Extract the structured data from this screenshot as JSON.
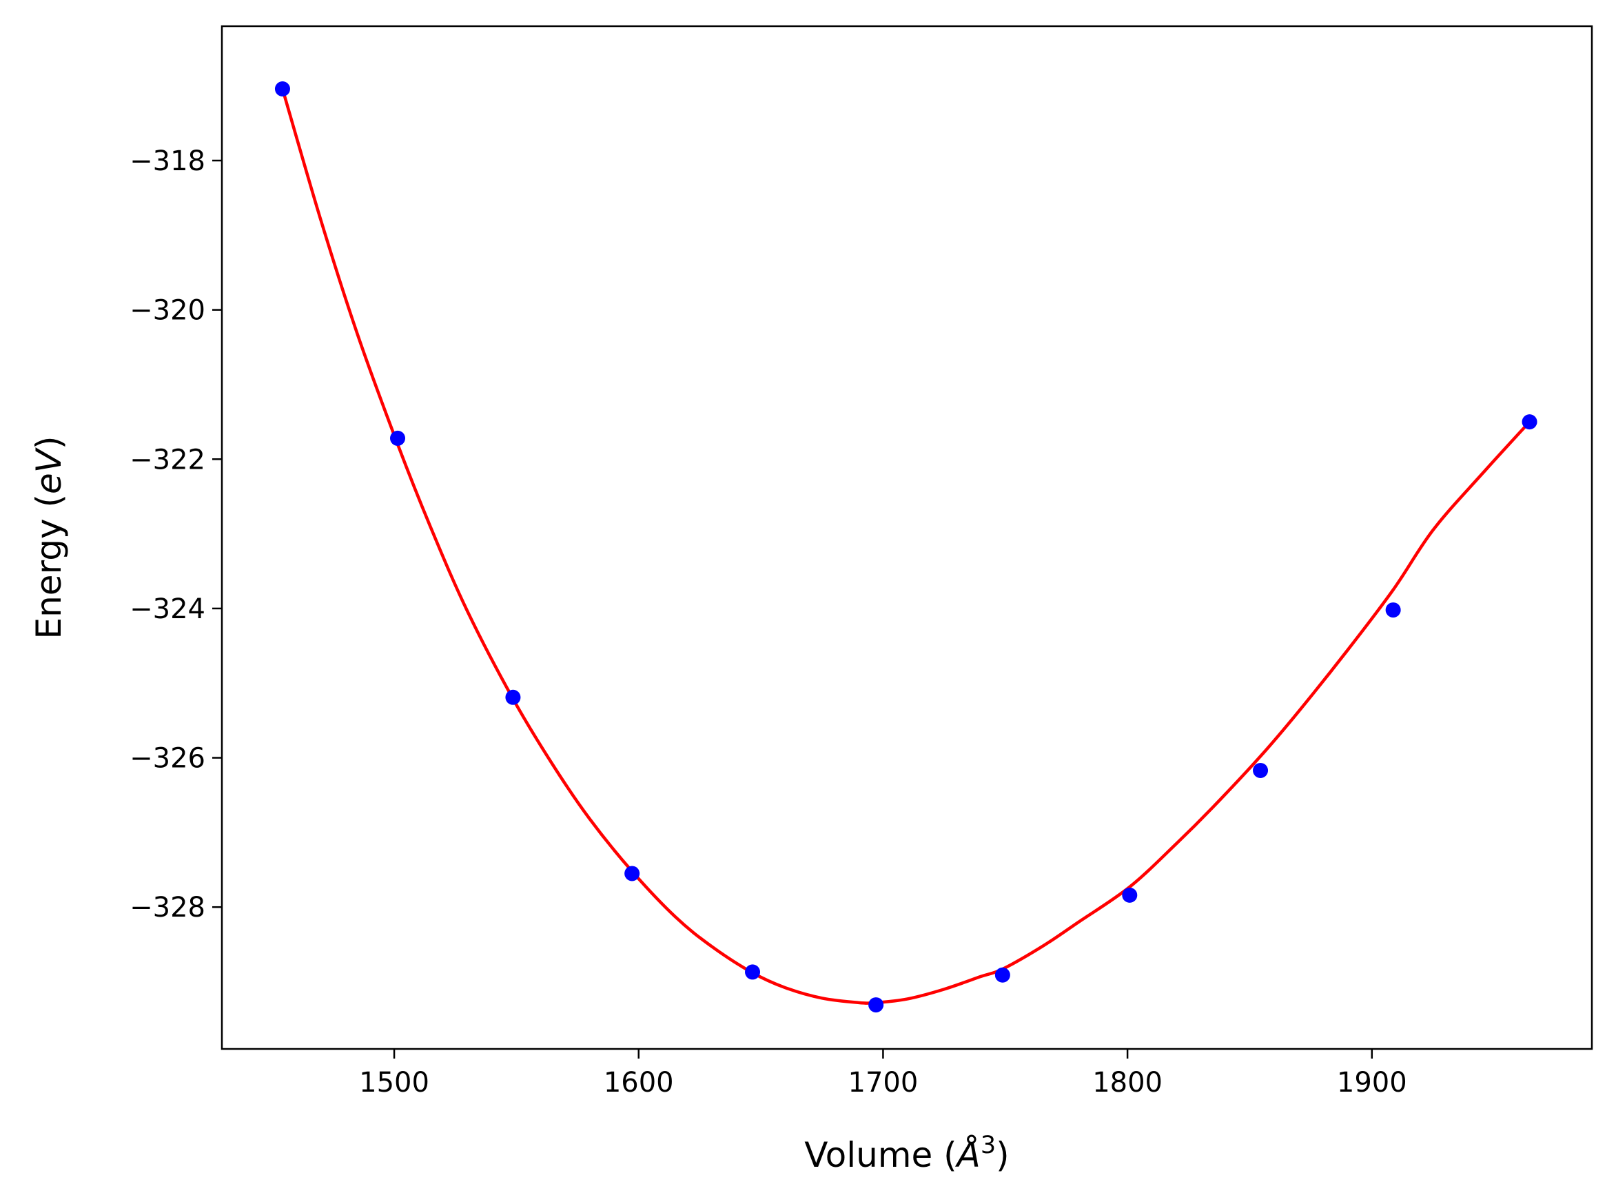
{
  "chart_data": {
    "type": "scatter",
    "title": "",
    "xlabel": {
      "prefix": "Volume (",
      "math": "Å",
      "sup": "3",
      "suffix": ")"
    },
    "ylabel": {
      "prefix": "Energy (",
      "math": "eV",
      "suffix": ")"
    },
    "xlim": [
      1429.5,
      1990.0
    ],
    "ylim": [
      -329.9,
      -316.2
    ],
    "xticks": [
      1500,
      1600,
      1700,
      1800,
      1900
    ],
    "xtick_labels": [
      "1500",
      "1600",
      "1700",
      "1800",
      "1900"
    ],
    "yticks": [
      -318,
      -320,
      -322,
      -324,
      -326,
      -328
    ],
    "ytick_labels": [
      "−318",
      "−320",
      "−322",
      "−324",
      "−326",
      "−328"
    ],
    "grid": false,
    "legend": "none",
    "series": [
      {
        "kind": "points",
        "color": "#0000ff",
        "x": [
          1454.3,
          1501.4,
          1548.6,
          1597.3,
          1646.6,
          1697.1,
          1748.9,
          1800.9,
          1854.4,
          1908.7,
          1964.5
        ],
        "y": [
          -317.04,
          -321.72,
          -325.19,
          -327.55,
          -328.87,
          -329.31,
          -328.91,
          -327.84,
          -326.17,
          -324.02,
          -321.5
        ]
      },
      {
        "kind": "fit-curve",
        "color": "#ff0000",
        "x": [
          1454.3,
          1470,
          1485,
          1501.4,
          1515,
          1530,
          1548.6,
          1565,
          1580,
          1597.3,
          1615,
          1630,
          1646.6,
          1660,
          1675,
          1690,
          1697.1,
          1710,
          1725,
          1740,
          1748.9,
          1765,
          1780,
          1800.9,
          1820,
          1835,
          1854.4,
          1870,
          1890,
          1908.7,
          1925,
          1945,
          1964.5
        ],
        "y": [
          -317.04,
          -318.8,
          -320.33,
          -321.8,
          -322.92,
          -324.04,
          -325.21,
          -326.1,
          -326.82,
          -327.52,
          -328.13,
          -328.53,
          -328.88,
          -329.08,
          -329.22,
          -329.28,
          -329.28,
          -329.23,
          -329.1,
          -328.93,
          -328.83,
          -328.53,
          -328.2,
          -327.73,
          -327.15,
          -326.66,
          -325.98,
          -325.38,
          -324.56,
          -323.75,
          -322.95,
          -322.2,
          -321.5
        ]
      }
    ]
  }
}
